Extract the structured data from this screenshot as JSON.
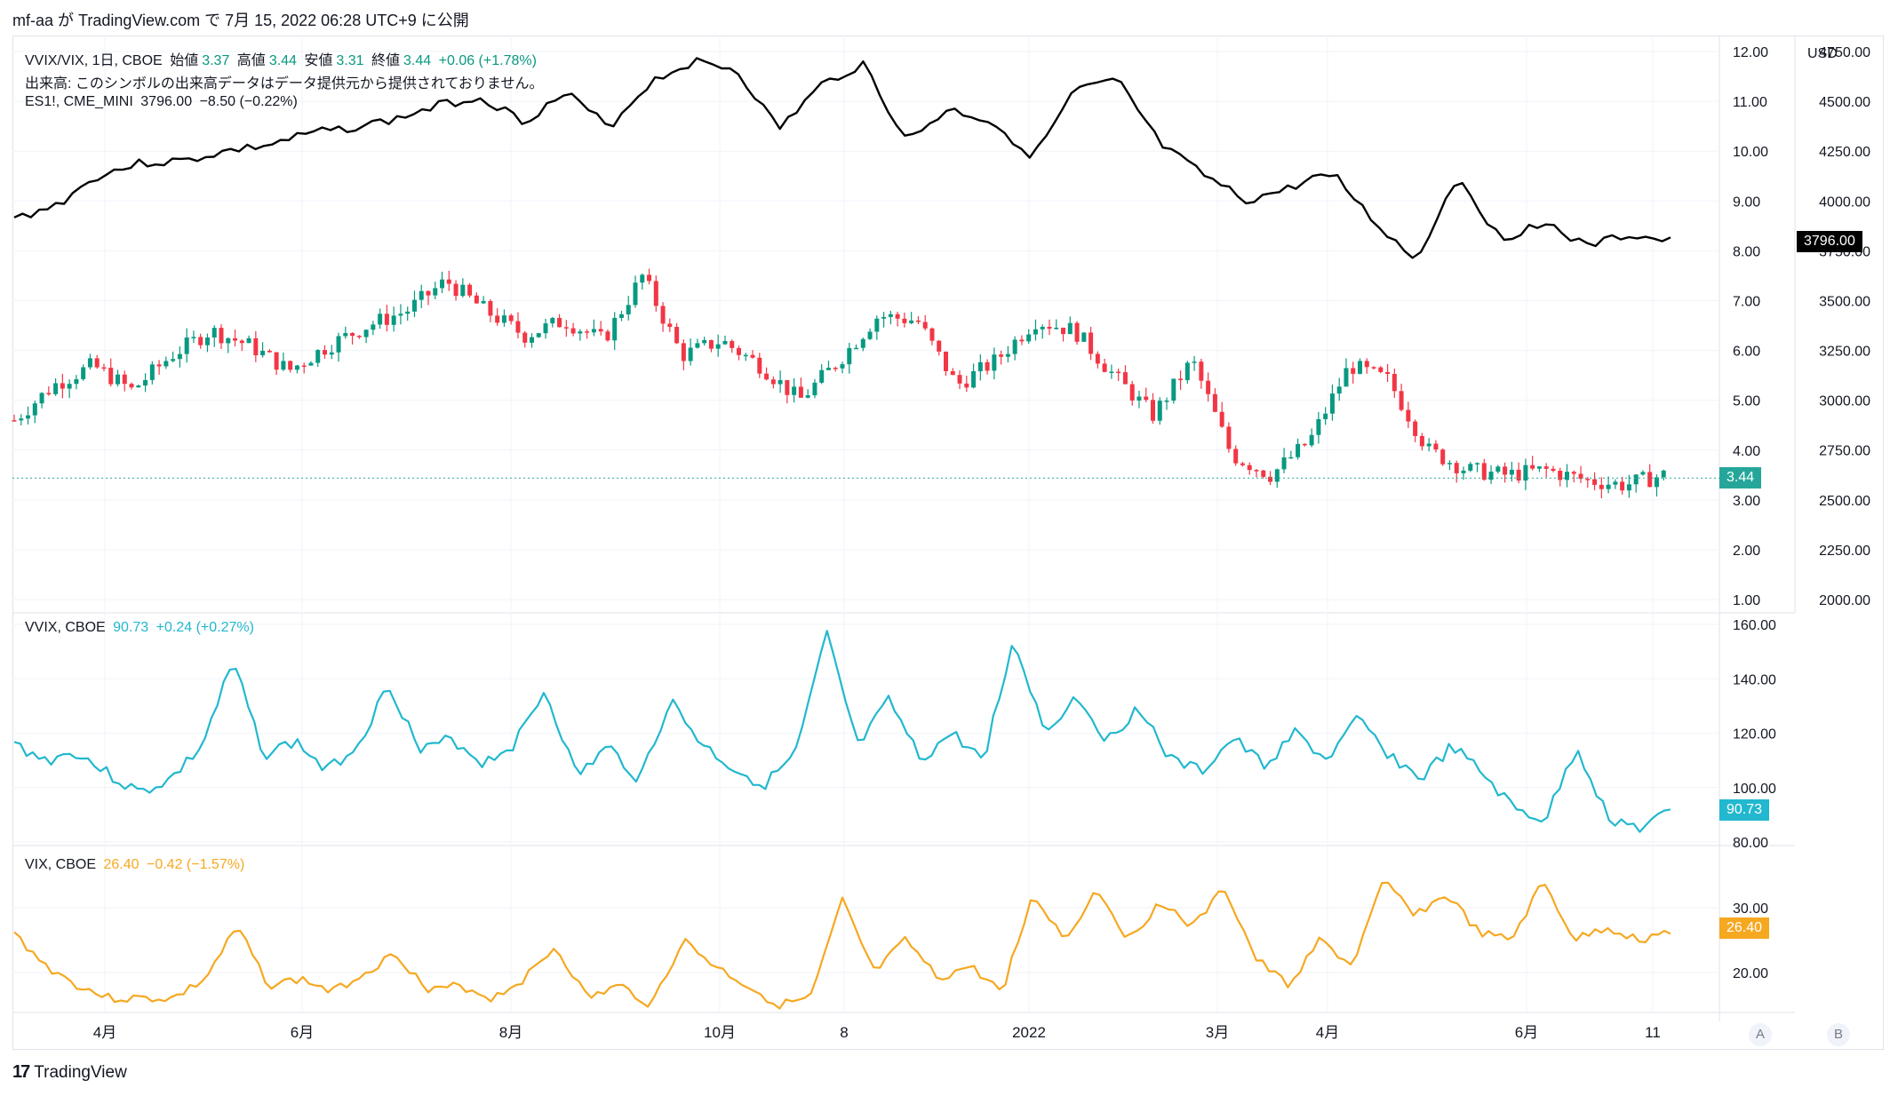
{
  "header": {
    "author": "mf-aa",
    "text": "mf-aa が TradingView.com で 7月 15, 2022 06:28 UTC+9 に公開"
  },
  "legend_main": {
    "symbol": "VVIX/VIX, 1日, CBOE",
    "open_label": "始値",
    "open": "3.37",
    "high_label": "高値",
    "high": "3.44",
    "low_label": "安値",
    "low": "3.31",
    "close_label": "終値",
    "close": "3.44",
    "change": "+0.06 (+1.78%)",
    "volume_note": "出来高: このシンボルの出来高データはデータ提供元から提供されておりません。",
    "es_symbol": "ES1!, CME_MINI",
    "es_value": "3796.00",
    "es_change": "−8.50 (−0.22%)"
  },
  "legend_vvix": {
    "symbol": "VVIX, CBOE",
    "value": "90.73",
    "change": "+0.24 (+0.27%)"
  },
  "legend_vix": {
    "symbol": "VIX, CBOE",
    "value": "26.40",
    "change": "−0.42 (−1.57%)"
  },
  "price_tags": {
    "es": "3796.00",
    "ratio": "3.44",
    "vvix": "90.73",
    "vix": "26.40"
  },
  "currency": "USD",
  "axis_buttons": {
    "a": "A",
    "b": "B"
  },
  "footer": {
    "brand": "TradingView",
    "logo": "17"
  },
  "colors": {
    "up": "#089981",
    "down": "#f23645",
    "es": "#000000",
    "vvix": "#22b8cf",
    "vix": "#f6a821",
    "grid": "#f0f3fa"
  },
  "chart_data": {
    "type": "line",
    "x_ticks": [
      "4月",
      "6月",
      "8月",
      "10月",
      "8",
      "2022",
      "3月",
      "4月",
      "6月",
      "11"
    ],
    "panes": [
      {
        "name": "VVIX/VIX",
        "kind": "candlestick",
        "y_ticks_left": [
          "12.00",
          "11.00",
          "10.00",
          "9.00",
          "8.00",
          "7.00",
          "6.00",
          "5.00",
          "4.00",
          "3.00",
          "2.00",
          "1.00"
        ],
        "y_ticks_right": [
          "4750.00",
          "4500.00",
          "4250.00",
          "4000.00",
          "3750.00",
          "3500.00",
          "3250.00",
          "3000.00",
          "2750.00",
          "2500.00",
          "2250.00",
          "2000.00"
        ],
        "ratio_close_approx": [
          4.6,
          5.3,
          5.7,
          5.2,
          5.9,
          6.4,
          6.1,
          5.6,
          6.1,
          6.5,
          6.8,
          7.4,
          6.8,
          6.3,
          6.6,
          6.2,
          7.5,
          5.9,
          6.2,
          5.7,
          5.0,
          5.8,
          6.7,
          6.6,
          5.3,
          5.8,
          6.6,
          6.4,
          5.5,
          4.7,
          5.8,
          3.9,
          3.5,
          4.2,
          5.7,
          5.4,
          4.0,
          3.6,
          3.5,
          3.6,
          3.4,
          3.3,
          3.5
        ],
        "es_close_approx": [
          3910,
          3980,
          4130,
          4190,
          4200,
          4250,
          4280,
          4340,
          4370,
          4410,
          4480,
          4520,
          4400,
          4540,
          4370,
          4600,
          4700,
          4660,
          4360,
          4580,
          4690,
          4300,
          4460,
          4400,
          4220,
          4560,
          4600,
          4280,
          4130,
          4000,
          4060,
          4150,
          3900,
          3700,
          4130,
          3800,
          3900,
          3770,
          3830,
          3796
        ]
      },
      {
        "name": "VVIX",
        "y_ticks": [
          "160.00",
          "140.00",
          "120.00",
          "100.00",
          "80.00"
        ],
        "values_approx": [
          116,
          110,
          113,
          105,
          98,
          103,
          115,
          146,
          112,
          117,
          106,
          116,
          138,
          113,
          118,
          109,
          116,
          136,
          104,
          115,
          103,
          132,
          116,
          107,
          101,
          112,
          156,
          115,
          132,
          110,
          120,
          110,
          154,
          120,
          134,
          117,
          130,
          110,
          106,
          118,
          108,
          120,
          110,
          125,
          112,
          103,
          115,
          105,
          92,
          88,
          115,
          89,
          85,
          90.73
        ]
      },
      {
        "name": "VIX",
        "y_ticks": [
          "30.00",
          "20.00"
        ],
        "values_approx": [
          26,
          21,
          18,
          16,
          16,
          16,
          19,
          27,
          18,
          19,
          17,
          20,
          23,
          17,
          18,
          16,
          19,
          24,
          16,
          18,
          15,
          25,
          21,
          18,
          15,
          16,
          31,
          20,
          25,
          19,
          21,
          17,
          32,
          25,
          33,
          25,
          31,
          27,
          33,
          22,
          18,
          25,
          21,
          34,
          29,
          32,
          26,
          25,
          34,
          25,
          27,
          25,
          26.4
        ]
      }
    ]
  }
}
